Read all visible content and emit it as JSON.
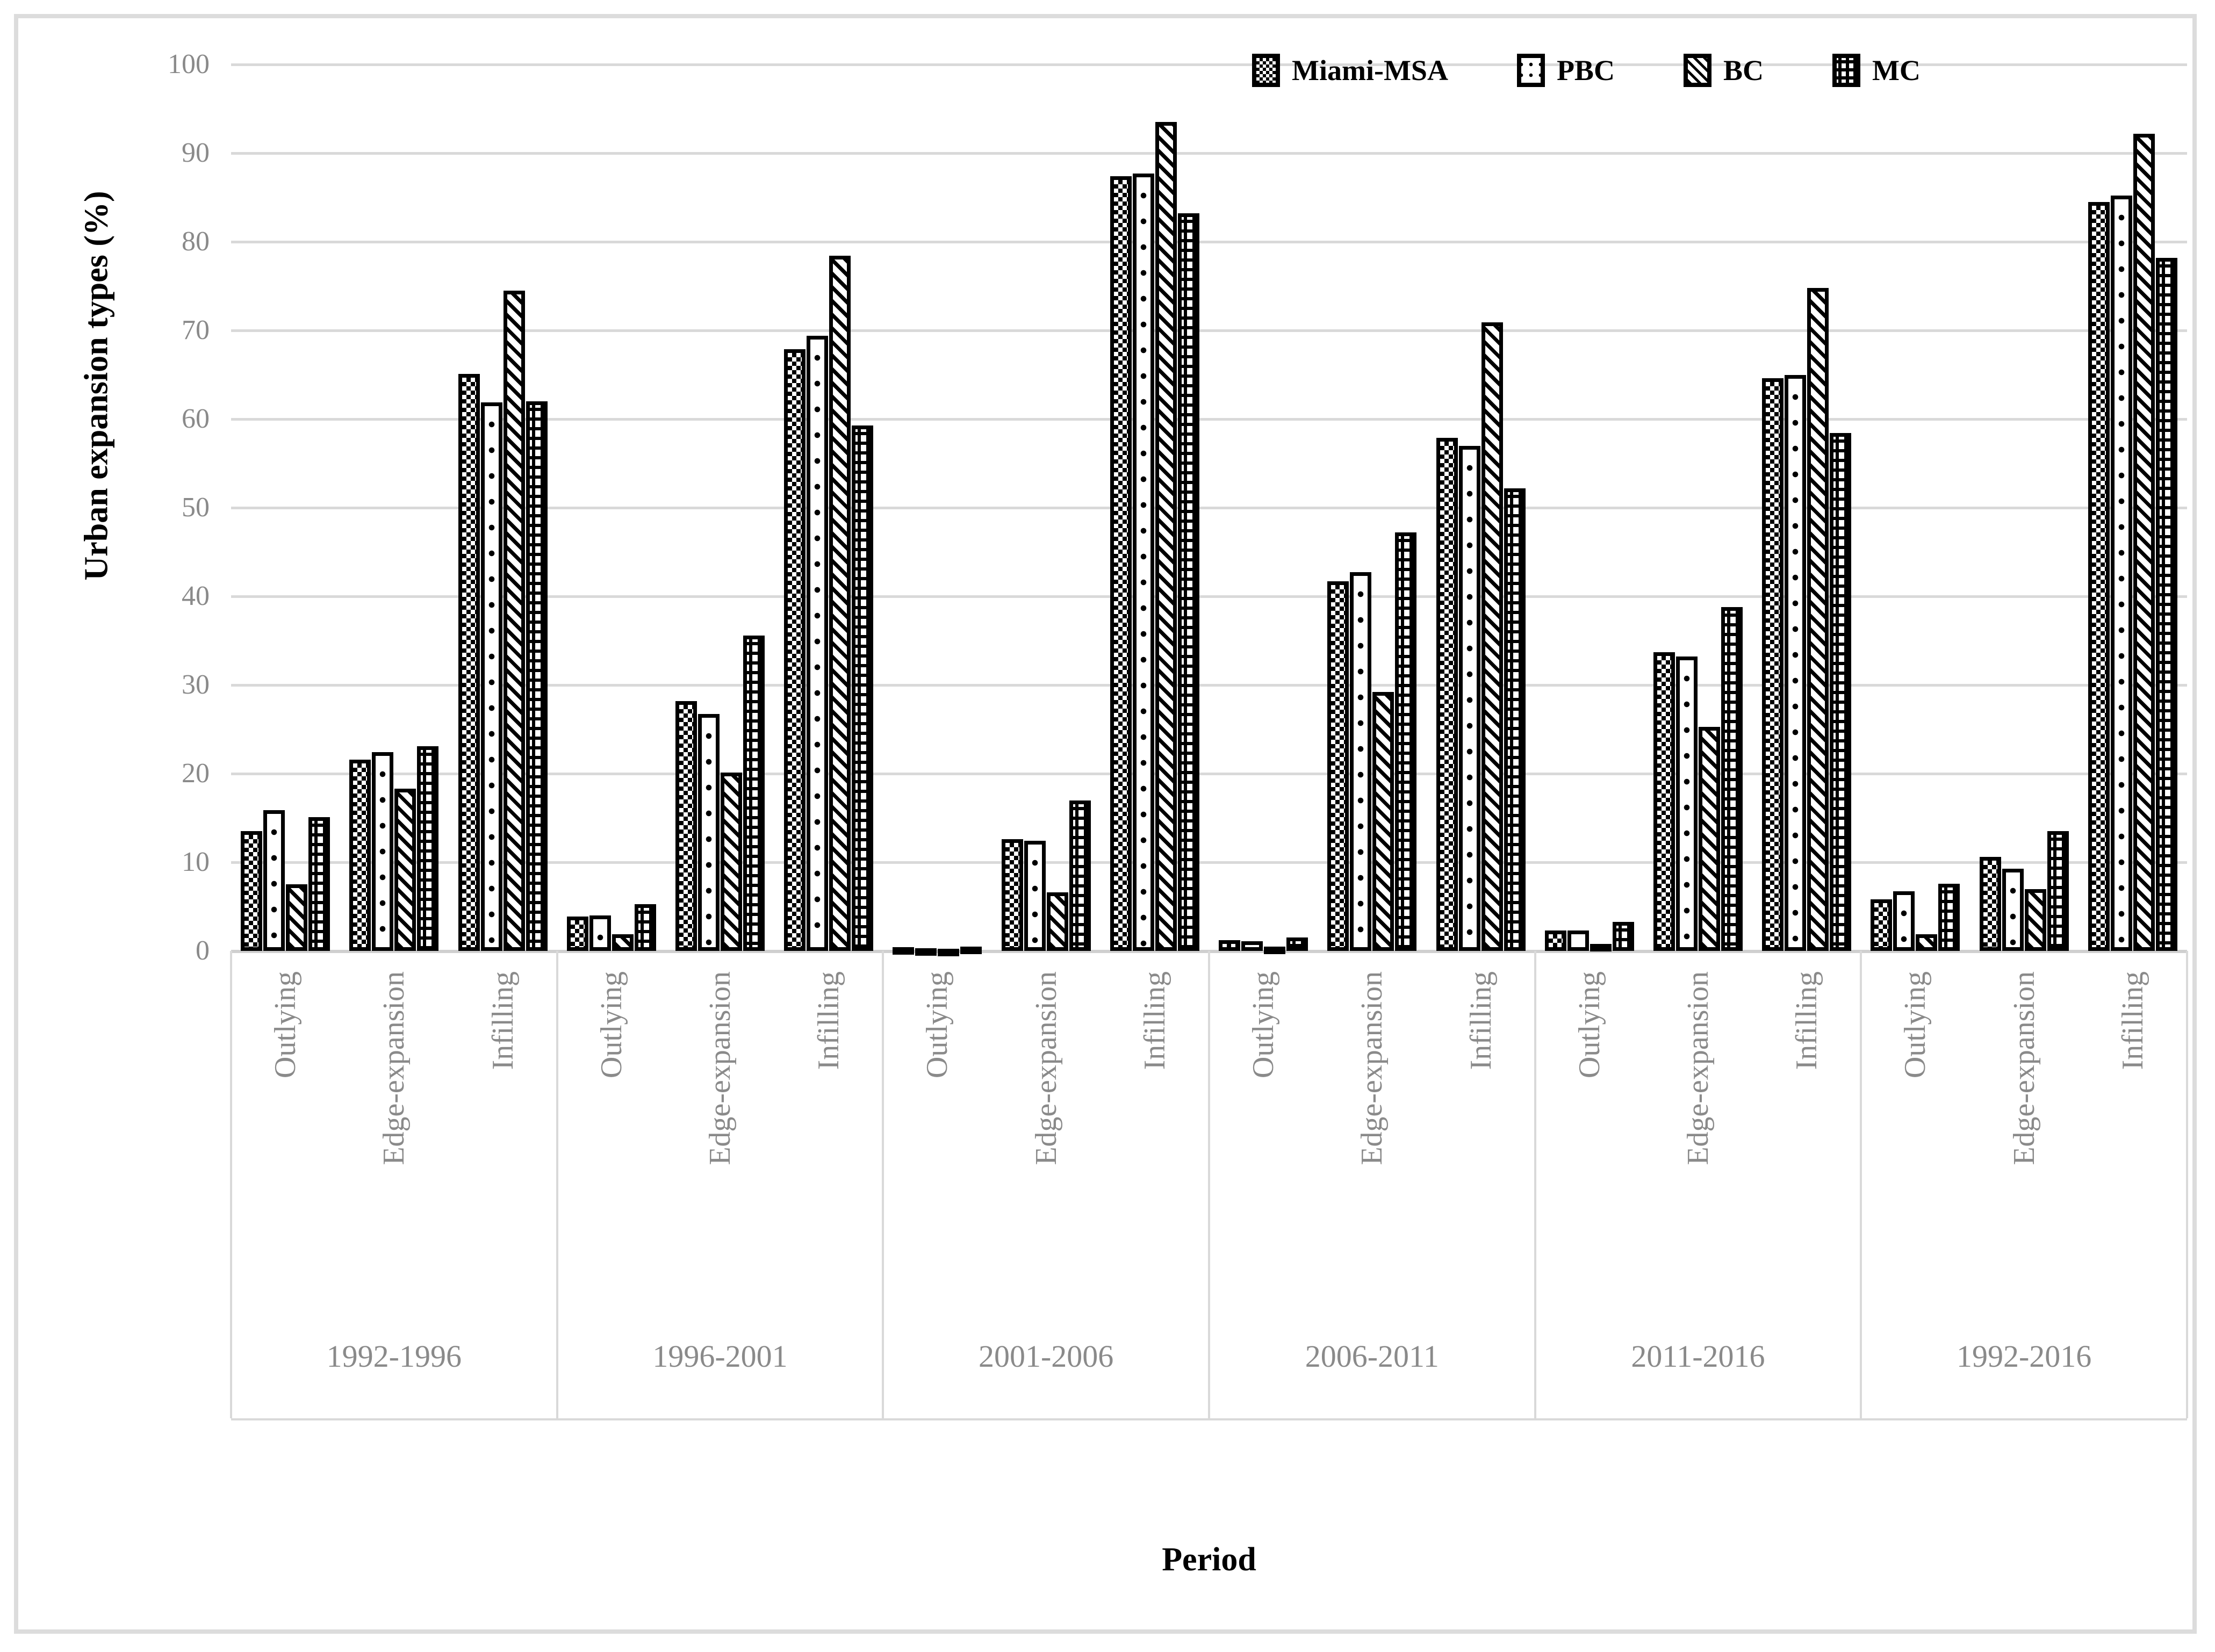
{
  "colors": {
    "foreground": "#000000",
    "gridline": "#d9d9d9",
    "axis_line": "#cfcfcf",
    "label_gray": "#8a8a8a",
    "figure_border": "#dcdcdc",
    "background": "#ffffff"
  },
  "chart_data": {
    "type": "bar",
    "title": "",
    "xlabel": "Period",
    "ylabel": "Urban expansion types (%)",
    "ylim": [
      0,
      100
    ],
    "ytick_step": 10,
    "yticks": [
      "0",
      "10",
      "20",
      "30",
      "40",
      "50",
      "60",
      "70",
      "80",
      "90",
      "100"
    ],
    "grid": "horizontal",
    "legend_position": "top-right",
    "series_names": [
      "Miami-MSA",
      "PBC",
      "BC",
      "MC"
    ],
    "categories": [
      "Outlying",
      "Edge-expansion",
      "Infilling"
    ],
    "periods": [
      "1992-1996",
      "1996-2001",
      "2001-2006",
      "2006-2011",
      "2011-2016",
      "1992-2016"
    ],
    "values": {
      "1992-1996": {
        "Outlying": [
          13.5,
          15.9,
          7.5,
          15.1
        ],
        "Edge-expansion": [
          21.6,
          22.4,
          18.3,
          23.1
        ],
        "Infilling": [
          65.1,
          61.9,
          74.5,
          62.0
        ]
      },
      "1996-2001": {
        "Outlying": [
          3.9,
          4.0,
          1.9,
          5.3
        ],
        "Edge-expansion": [
          28.2,
          26.7,
          20.1,
          35.6
        ],
        "Infilling": [
          67.9,
          69.4,
          78.4,
          59.3
        ]
      },
      "2001-2006": {
        "Outlying": [
          0.4,
          0.3,
          0.2,
          0.5
        ],
        "Edge-expansion": [
          12.6,
          12.4,
          6.6,
          17.0
        ],
        "Infilling": [
          87.4,
          87.7,
          93.5,
          83.2
        ]
      },
      "2006-2011": {
        "Outlying": [
          1.2,
          1.1,
          0.5,
          1.5
        ],
        "Edge-expansion": [
          41.7,
          42.7,
          29.2,
          47.2
        ],
        "Infilling": [
          57.9,
          57.0,
          70.9,
          52.2
        ]
      },
      "2011-2016": {
        "Outlying": [
          2.3,
          2.3,
          0.8,
          3.3
        ],
        "Edge-expansion": [
          33.7,
          33.2,
          25.3,
          38.8
        ],
        "Infilling": [
          64.6,
          65.0,
          74.8,
          58.4
        ]
      },
      "1992-2016": {
        "Outlying": [
          5.8,
          6.7,
          1.9,
          7.6
        ],
        "Edge-expansion": [
          10.6,
          9.3,
          7.0,
          13.5
        ],
        "Infilling": [
          84.5,
          85.2,
          92.2,
          78.2
        ]
      }
    }
  }
}
